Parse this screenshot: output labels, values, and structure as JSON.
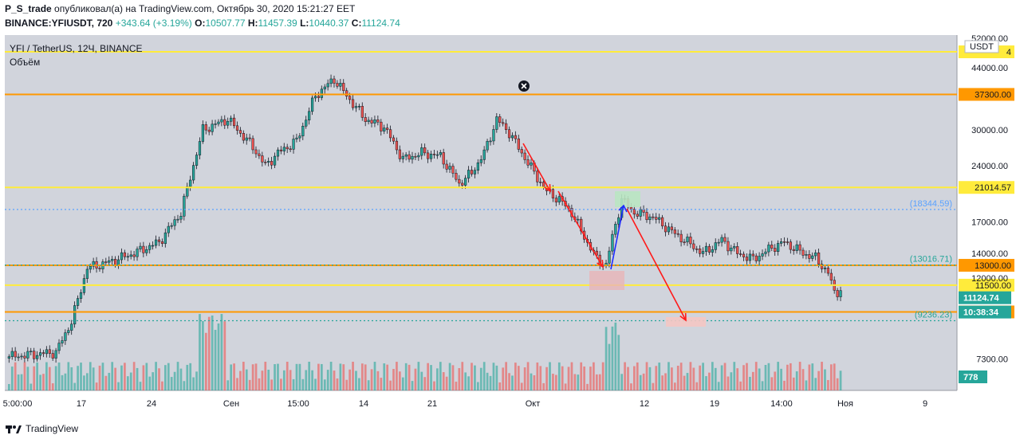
{
  "header": {
    "author": "P_S_trade",
    "published_text": "опубликовал(а) на TradingView.com, Октябрь 30, 2020 15:21:27 EET",
    "symbol_line": "BINANCE:YFIUSDT, 720",
    "change": "+343.64 (+3.19%)",
    "o_label": "O:",
    "o_value": "10507.77",
    "h_label": "H:",
    "h_value": "11457.39",
    "l_label": "L:",
    "l_value": "10440.37",
    "c_label": "C:",
    "c_value": "11124.74"
  },
  "legend": {
    "title": "YFI / TetherUS, 12Ч, BINANCE",
    "volume_label": "Объём"
  },
  "footer": {
    "brand": "TradingView"
  },
  "colors": {
    "up": "#26a69a",
    "down": "#ef5350",
    "background": "#d1d4dc",
    "yellow_level": "#ffeb3b",
    "orange_level": "#ff9800",
    "arrow": "#ff1a1a",
    "blue_arrow": "#1d2bff"
  },
  "chart_data": {
    "type": "candlestick",
    "y_scale": "log",
    "ylim": [
      6500,
      53000
    ],
    "y_ticks": [
      {
        "value": 44000,
        "label": "44000.00"
      },
      {
        "value": 30000,
        "label": "30000.00"
      },
      {
        "value": 24000,
        "label": "24000.00"
      },
      {
        "value": 17000,
        "label": "17000.00"
      },
      {
        "value": 14000,
        "label": "14000.00"
      },
      {
        "value": 12000,
        "label": "12000.00"
      },
      {
        "value": 7300,
        "label": "7300.00"
      }
    ],
    "y_top_label": "52000.00",
    "unit_label": "USDT",
    "x_ticks": [
      "5:00:00",
      "17",
      "24",
      "Сен",
      "15:00",
      "14",
      "21",
      "Окт",
      "12",
      "19",
      "14:00",
      "Ноя",
      "9"
    ],
    "levels": [
      {
        "value": 48500,
        "label": "4",
        "color": "yellow",
        "extra": "0"
      },
      {
        "value": 37300,
        "label": "37300.00",
        "color": "orange"
      },
      {
        "value": 21014.57,
        "label": "21014.57",
        "color": "yellow"
      },
      {
        "value": 13000,
        "label": "13000.00",
        "color": "orange"
      },
      {
        "value": 11500,
        "label": "11500.00",
        "color": "yellow"
      },
      {
        "value": 9750,
        "label": "9750.00",
        "color": "orange"
      }
    ],
    "dotted_levels": [
      {
        "value": 18344.59,
        "label": "(18344.59)"
      },
      {
        "value": 13016.71,
        "label": "(13016.71)"
      },
      {
        "value": 9236.23,
        "label": "(9236.23)"
      }
    ],
    "last_price": "11124.74",
    "countdown": "10:38:34",
    "last_volume": "778"
  }
}
